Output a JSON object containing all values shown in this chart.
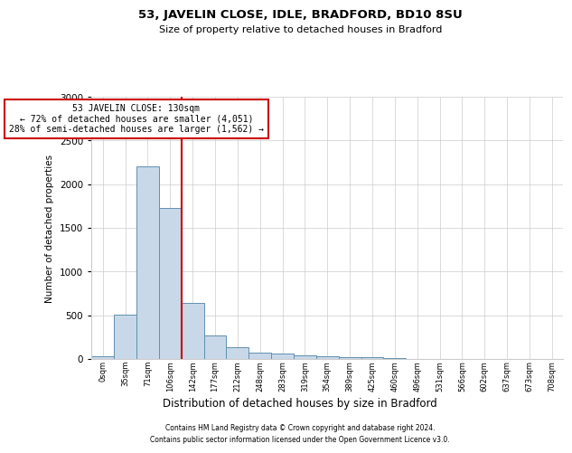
{
  "title": "53, JAVELIN CLOSE, IDLE, BRADFORD, BD10 8SU",
  "subtitle": "Size of property relative to detached houses in Bradford",
  "xlabel": "Distribution of detached houses by size in Bradford",
  "ylabel": "Number of detached properties",
  "bar_color": "#c8d8e8",
  "bar_edge_color": "#6090b0",
  "annotation_line_color": "#cc0000",
  "annotation_box_edge_color": "#cc0000",
  "annotation_text_line1": "53 JAVELIN CLOSE: 130sqm",
  "annotation_text_line2": "← 72% of detached houses are smaller (4,051)",
  "annotation_text_line3": "28% of semi-detached houses are larger (1,562) →",
  "footer1": "Contains HM Land Registry data © Crown copyright and database right 2024.",
  "footer2": "Contains public sector information licensed under the Open Government Licence v3.0.",
  "categories": [
    "0sqm",
    "35sqm",
    "71sqm",
    "106sqm",
    "142sqm",
    "177sqm",
    "212sqm",
    "248sqm",
    "283sqm",
    "319sqm",
    "354sqm",
    "389sqm",
    "425sqm",
    "460sqm",
    "496sqm",
    "531sqm",
    "566sqm",
    "602sqm",
    "637sqm",
    "673sqm",
    "708sqm"
  ],
  "values": [
    30,
    510,
    2200,
    1730,
    640,
    270,
    135,
    75,
    60,
    45,
    30,
    25,
    20,
    10,
    5,
    3,
    2,
    1,
    1,
    1,
    0
  ],
  "ylim_max": 3000,
  "red_line_x": 3.5,
  "background_color": "#ffffff",
  "grid_color": "#cccccc",
  "title_fontsize": 9.5,
  "subtitle_fontsize": 8,
  "ylabel_fontsize": 7.5,
  "xlabel_fontsize": 8.5,
  "ytick_fontsize": 7.5,
  "xtick_fontsize": 6,
  "annotation_fontsize": 7,
  "footer_fontsize": 5.5
}
